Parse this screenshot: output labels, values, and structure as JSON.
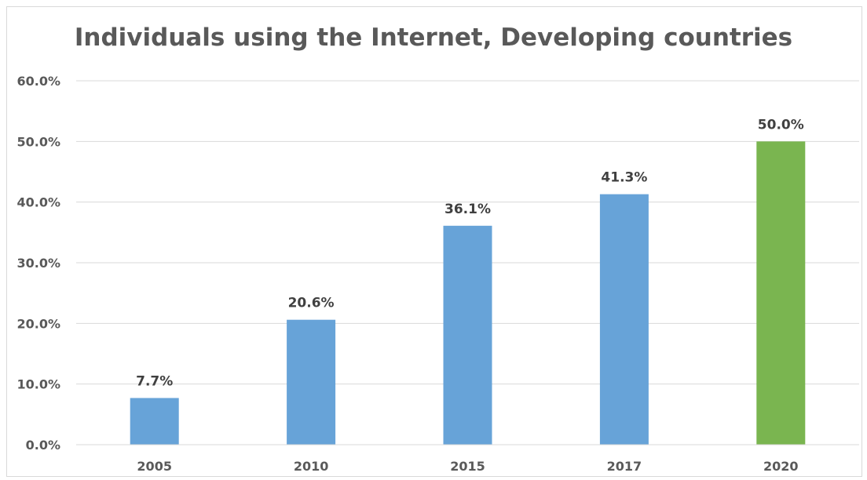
{
  "chart_data": {
    "type": "bar",
    "title": "Individuals using the Internet, Developing countries",
    "xlabel": "",
    "ylabel": "",
    "categories": [
      "2005",
      "2010",
      "2015",
      "2017",
      "2020"
    ],
    "values": [
      7.7,
      20.6,
      36.1,
      41.3,
      50.0
    ],
    "value_labels": [
      "7.7%",
      "20.6%",
      "36.1%",
      "41.3%",
      "50.0%"
    ],
    "bar_colors": [
      "#67a3d8",
      "#67a3d8",
      "#67a3d8",
      "#67a3d8",
      "#7ab550"
    ],
    "ylim": [
      0,
      60
    ],
    "yticks": [
      0,
      10,
      20,
      30,
      40,
      50,
      60
    ],
    "ytick_labels": [
      "0.0%",
      "10.0%",
      "20.0%",
      "30.0%",
      "40.0%",
      "50.0%",
      "60.0%"
    ],
    "grid": true,
    "legend": "none"
  }
}
